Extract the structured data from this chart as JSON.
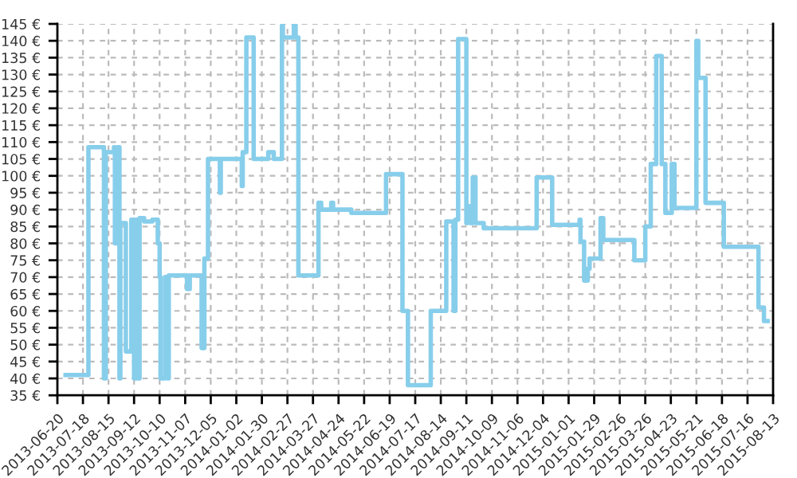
{
  "chart_data": {
    "type": "step",
    "color": "#87ceeb",
    "grid": true,
    "line_style": "solid",
    "marker": "none",
    "xlim": [
      "2013-06-20",
      "2015-08-13"
    ],
    "xticks": [
      "2013-06-20",
      "2013-07-18",
      "2013-08-15",
      "2013-09-12",
      "2013-10-10",
      "2013-11-07",
      "2013-12-05",
      "2014-01-02",
      "2014-01-30",
      "2014-02-27",
      "2014-03-27",
      "2014-04-24",
      "2014-05-22",
      "2014-06-19",
      "2014-07-17",
      "2014-08-14",
      "2014-09-11",
      "2014-10-09",
      "2014-11-06",
      "2014-12-04",
      "2015-01-01",
      "2015-01-29",
      "2015-02-26",
      "2015-03-26",
      "2015-04-23",
      "2015-05-21",
      "2015-06-18",
      "2015-07-16",
      "2015-08-13"
    ],
    "ylim": [
      35,
      145
    ],
    "yticks": [
      {
        "value": 35,
        "label": "35 €"
      },
      {
        "value": 40,
        "label": "40 €"
      },
      {
        "value": 45,
        "label": "45 €"
      },
      {
        "value": 50,
        "label": "50 €"
      },
      {
        "value": 55,
        "label": "55 €"
      },
      {
        "value": 60,
        "label": "60 €"
      },
      {
        "value": 65,
        "label": "65 €"
      },
      {
        "value": 70,
        "label": "70 €"
      },
      {
        "value": 75,
        "label": "75 €"
      },
      {
        "value": 80,
        "label": "80 €"
      },
      {
        "value": 85,
        "label": "85 €"
      },
      {
        "value": 90,
        "label": "90 €"
      },
      {
        "value": 95,
        "label": "95 €"
      },
      {
        "value": 100,
        "label": "100 €"
      },
      {
        "value": 105,
        "label": "105 €"
      },
      {
        "value": 110,
        "label": "110 €"
      },
      {
        "value": 115,
        "label": "115 €"
      },
      {
        "value": 120,
        "label": "120 €"
      },
      {
        "value": 125,
        "label": "125 €"
      },
      {
        "value": 130,
        "label": "130 €"
      },
      {
        "value": 135,
        "label": "135 €"
      },
      {
        "value": 140,
        "label": "140 €"
      },
      {
        "value": 145,
        "label": "145 €"
      }
    ],
    "x": [
      "2013-06-29",
      "2013-07-24",
      "2013-08-10",
      "2013-08-12",
      "2013-08-21",
      "2013-08-22",
      "2013-08-25",
      "2013-08-27",
      "2013-08-28",
      "2013-09-03",
      "2013-09-09",
      "2013-09-12",
      "2013-09-14",
      "2013-09-16",
      "2013-09-18",
      "2013-09-23",
      "2013-10-02",
      "2013-10-08",
      "2013-10-10",
      "2013-10-11",
      "2013-10-16",
      "2013-10-19",
      "2013-10-20",
      "2013-11-09",
      "2013-11-12",
      "2013-11-25",
      "2013-11-28",
      "2013-12-02",
      "2013-12-15",
      "2013-12-16",
      "2014-01-08",
      "2014-01-09",
      "2014-01-13",
      "2014-01-21",
      "2014-02-06",
      "2014-02-12",
      "2014-02-21",
      "2014-02-22",
      "2014-03-06",
      "2014-03-08",
      "2014-03-11",
      "2014-04-02",
      "2014-04-05",
      "2014-04-16",
      "2014-04-18",
      "2014-05-08",
      "2014-06-15",
      "2014-07-03",
      "2014-07-09",
      "2014-08-03",
      "2014-08-20",
      "2014-08-28",
      "2014-08-30",
      "2014-09-02",
      "2014-09-11",
      "2014-09-12",
      "2014-09-15",
      "2014-09-18",
      "2014-09-21",
      "2014-09-30",
      "2014-11-27",
      "2014-12-14",
      "2015-01-13",
      "2015-01-14",
      "2015-01-18",
      "2015-01-22",
      "2015-01-24",
      "2015-02-05",
      "2015-02-08",
      "2015-03-14",
      "2015-03-26",
      "2015-04-01",
      "2015-04-07",
      "2015-04-13",
      "2015-04-17",
      "2015-04-24",
      "2015-04-27",
      "2015-05-21",
      "2015-05-23",
      "2015-05-31",
      "2015-06-20",
      "2015-07-28",
      "2015-08-03",
      "2015-08-07"
    ],
    "values": [
      41,
      108.5,
      40,
      107,
      108.5,
      80,
      108.5,
      40,
      86,
      48,
      87,
      40,
      87,
      40,
      87.5,
      86.5,
      87,
      80,
      70,
      40,
      70,
      40,
      70.5,
      66.5,
      70.5,
      49,
      75.5,
      105,
      95,
      105,
      97,
      107,
      141,
      105,
      107,
      105,
      144.5,
      141,
      144.5,
      141,
      70.5,
      92,
      90,
      92,
      90,
      89,
      100.5,
      60,
      38,
      60,
      86.5,
      60,
      87,
      140.5,
      86,
      91,
      86,
      99.5,
      86,
      84.5,
      99.5,
      85.5,
      87,
      80.5,
      69,
      72.5,
      75.5,
      87.5,
      81,
      75,
      85,
      103.5,
      135.5,
      103.5,
      89,
      103.5,
      90.5,
      140,
      129,
      92,
      79,
      61,
      57,
      57
    ]
  }
}
